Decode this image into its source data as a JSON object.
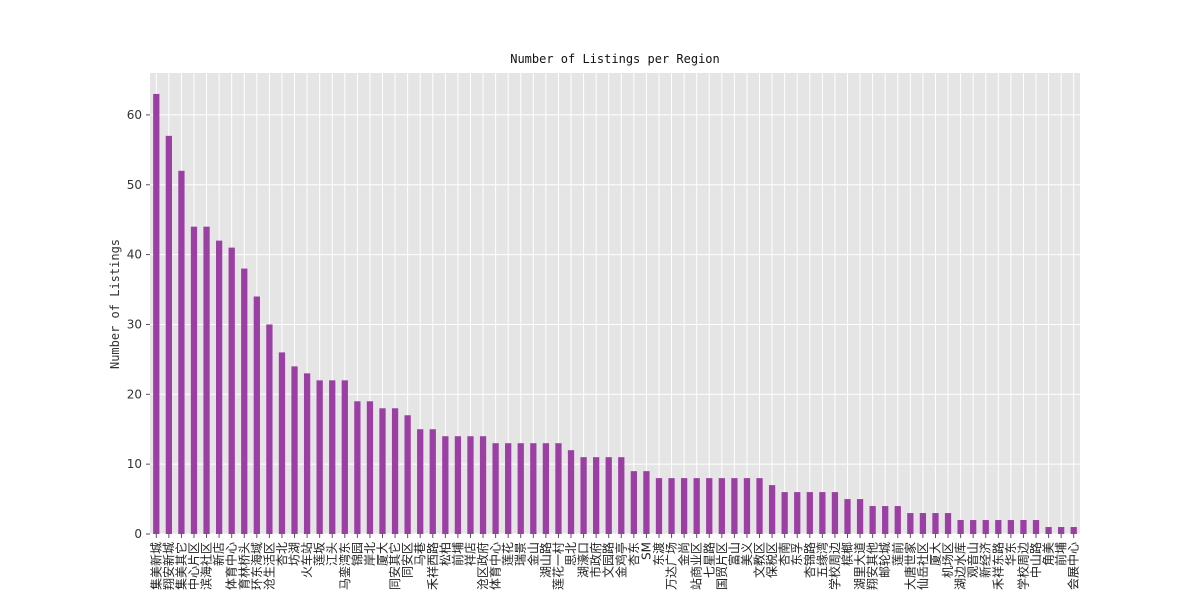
{
  "chart_data": {
    "type": "bar",
    "title": "Number of Listings per Region",
    "xlabel": "",
    "ylabel": "Number of Listings",
    "ylim": [
      0,
      66
    ],
    "yticks": [
      0,
      10,
      20,
      30,
      40,
      50,
      60
    ],
    "grid": true,
    "legend": "none",
    "colors": {
      "bar": "#9c3fa5",
      "plot_bg": "#e5e5e5",
      "grid": "#ffffff"
    },
    "categories": [
      "集美新城",
      "翔安新城",
      "集美其它",
      "中心片区",
      "滨海社区",
      "新店",
      "体育中心",
      "育林桥头",
      "环东海域",
      "沧生活区",
      "杏北",
      "坊湖",
      "火车站",
      "莲坂",
      "江头",
      "马銮湾东",
      "锦园",
      "岸北",
      "厦大",
      "同安其它",
      "同安区",
      "马巷",
      "禾祥西路",
      "松柏",
      "前埔",
      "祥店",
      "沧区政府",
      "体育中心",
      "莲花",
      "瑞景",
      "金山",
      "湖山路",
      "莲花一村",
      "思北",
      "湖濠口",
      "市政府",
      "文园路",
      "金鸡亭",
      "杏东",
      "SM",
      "东渡",
      "万达广场",
      "金尚",
      "站商业区",
      "七星路",
      "国贸片区",
      "富山",
      "美义",
      "文教区",
      "保税区",
      "杏南",
      "东孚",
      "杏锦路",
      "五缘湾",
      "学校周边",
      "槟榔",
      "湖里大道",
      "翔安其他",
      "邮轮城",
      "莲前",
      "大唐世家",
      "仙岳社区",
      "厦大",
      "机场区",
      "湖边水库",
      "观音山",
      "新经济",
      "禾祥东路",
      "华东",
      "学校周边",
      "中山路",
      "角美",
      "前埔",
      "会展中心"
    ],
    "values": [
      63,
      57,
      52,
      44,
      44,
      42,
      41,
      38,
      34,
      30,
      26,
      24,
      23,
      22,
      22,
      22,
      19,
      19,
      18,
      18,
      17,
      15,
      15,
      14,
      14,
      14,
      14,
      13,
      13,
      13,
      13,
      13,
      13,
      12,
      11,
      11,
      11,
      11,
      9,
      9,
      8,
      8,
      8,
      8,
      8,
      8,
      8,
      8,
      8,
      7,
      6,
      6,
      6,
      6,
      6,
      5,
      5,
      4,
      4,
      4,
      3,
      3,
      3,
      3,
      2,
      2,
      2,
      2,
      2,
      2,
      2,
      1,
      1,
      1
    ]
  }
}
